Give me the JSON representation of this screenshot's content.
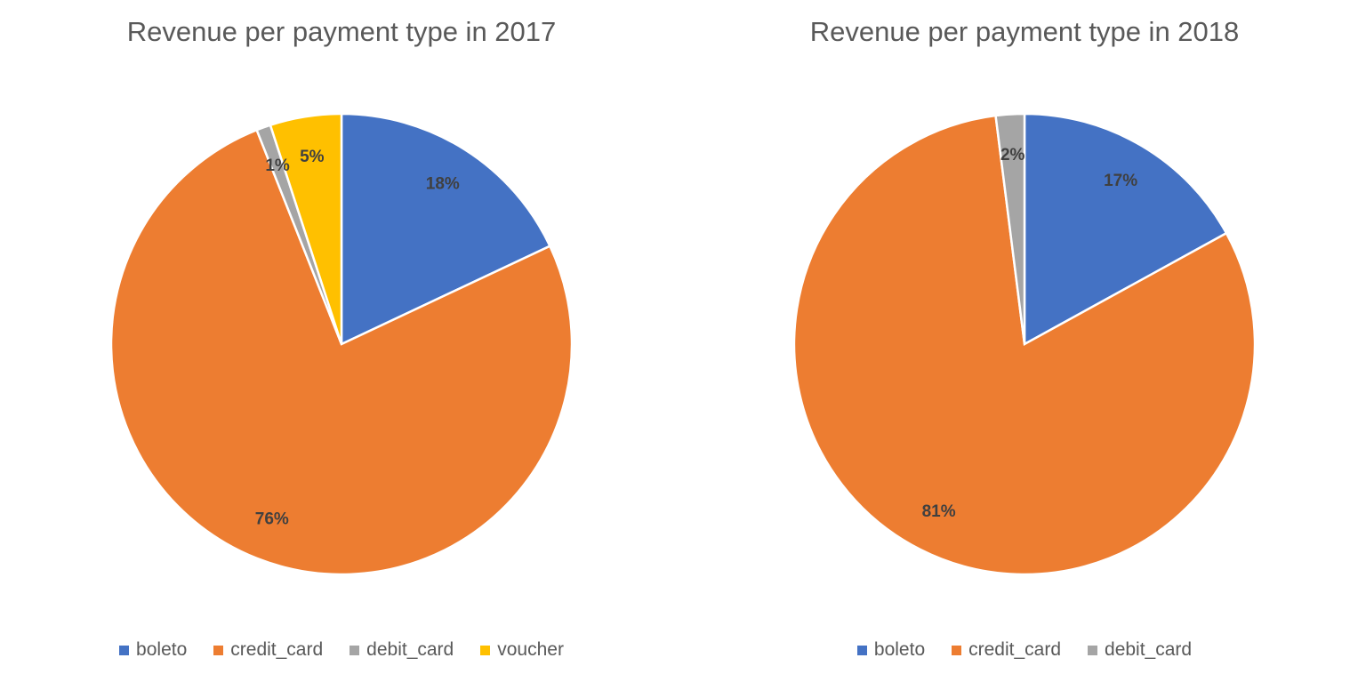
{
  "chart_data": [
    {
      "type": "pie",
      "title": "Revenue per payment type in 2017",
      "categories": [
        "boleto",
        "credit_card",
        "debit_card",
        "voucher"
      ],
      "values": [
        18,
        76,
        1,
        5
      ],
      "data_labels": [
        "18%",
        "76%",
        "1%",
        "5%"
      ],
      "colors": [
        "#4472C4",
        "#ED7D31",
        "#A5A5A5",
        "#FFC000"
      ],
      "legend": "bottom"
    },
    {
      "type": "pie",
      "title": "Revenue per payment type in 2018",
      "categories": [
        "boleto",
        "credit_card",
        "debit_card"
      ],
      "values": [
        17,
        81,
        2
      ],
      "data_labels": [
        "17%",
        "81%",
        "2%"
      ],
      "colors": [
        "#4472C4",
        "#ED7D31",
        "#A5A5A5"
      ],
      "legend": "bottom"
    }
  ]
}
